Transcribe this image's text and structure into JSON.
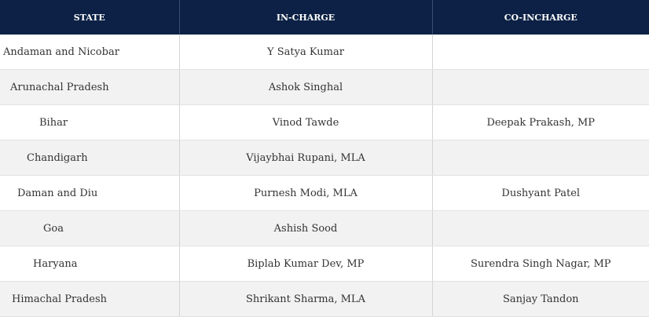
{
  "table": {
    "headers": {
      "state": "STATE",
      "incharge": "IN-CHARGE",
      "coincharge": "CO-INCHARGE"
    },
    "rows": [
      {
        "state": "Andaman and Nicobar",
        "incharge": "Y Satya Kumar",
        "coincharge": ""
      },
      {
        "state": "Arunachal Pradesh",
        "incharge": "Ashok Singhal",
        "coincharge": ""
      },
      {
        "state": "Bihar",
        "incharge": "Vinod Tawde",
        "coincharge": "Deepak Prakash, MP"
      },
      {
        "state": "Chandigarh",
        "incharge": "Vijaybhai Rupani, MLA",
        "coincharge": ""
      },
      {
        "state": "Daman and Diu",
        "incharge": "Purnesh Modi, MLA",
        "coincharge": "Dushyant Patel"
      },
      {
        "state": "Goa",
        "incharge": "Ashish Sood",
        "coincharge": ""
      },
      {
        "state": "Haryana",
        "incharge": "Biplab Kumar Dev, MP",
        "coincharge": "Surendra Singh Nagar, MP"
      },
      {
        "state": "Himachal Pradesh",
        "incharge": "Shrikant Sharma, MLA",
        "coincharge": "Sanjay Tandon"
      }
    ]
  }
}
